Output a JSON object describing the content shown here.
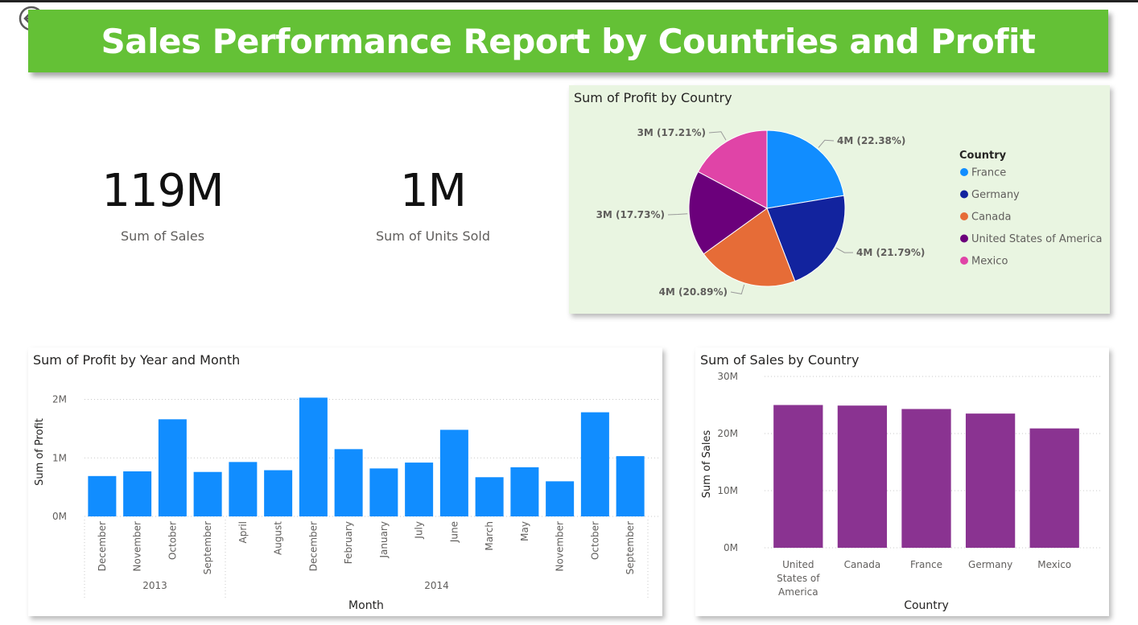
{
  "header": {
    "title": "Sales Performance Report by Countries and Profit",
    "banner_color": "#64c136",
    "back_icon": "back-arrow-icon"
  },
  "kpis": [
    {
      "value": "119M",
      "label": "Sum of Sales"
    },
    {
      "value": "1M",
      "label": "Sum of Units Sold"
    }
  ],
  "chart_data": [
    {
      "type": "pie",
      "title": "Sum of Profit by Country",
      "legend_title": "Country",
      "legend_position": "right",
      "slices": [
        {
          "name": "France",
          "label": "4M (22.38%)",
          "value": 22.38,
          "color": "#118dff"
        },
        {
          "name": "Germany",
          "label": "4M (21.79%)",
          "value": 21.79,
          "color": "#12239e"
        },
        {
          "name": "Canada",
          "label": "4M (20.89%)",
          "value": 20.89,
          "color": "#e66c37"
        },
        {
          "name": "United States of America",
          "label": "3M (17.73%)",
          "value": 17.73,
          "color": "#6b007b"
        },
        {
          "name": "Mexico",
          "label": "3M (17.21%)",
          "value": 17.21,
          "color": "#e044a7"
        }
      ]
    },
    {
      "type": "bar",
      "title": "Sum of Profit by Year and Month",
      "xlabel": "Month",
      "ylabel": "Sum of Profit",
      "ylim": [
        0,
        2200000
      ],
      "yticks": [
        {
          "value": 0,
          "label": "0M"
        },
        {
          "value": 1000000,
          "label": "1M"
        },
        {
          "value": 2000000,
          "label": "2M"
        }
      ],
      "grid": true,
      "color": "#118dff",
      "groups": [
        {
          "name": "2013",
          "categories": [
            "December",
            "November",
            "October",
            "September"
          ]
        },
        {
          "name": "2014",
          "categories": [
            "April",
            "August",
            "December",
            "February",
            "January",
            "July",
            "June",
            "March",
            "May",
            "November",
            "October",
            "September"
          ]
        }
      ],
      "values": [
        690000,
        770000,
        1660000,
        760000,
        930000,
        790000,
        2030000,
        1150000,
        820000,
        920000,
        1480000,
        670000,
        840000,
        600000,
        1780000,
        1030000
      ]
    },
    {
      "type": "bar",
      "title": "Sum of Sales by Country",
      "xlabel": "Country",
      "ylabel": "Sum of Sales",
      "ylim": [
        0,
        30000000
      ],
      "yticks": [
        {
          "value": 0,
          "label": "0M"
        },
        {
          "value": 10000000,
          "label": "10M"
        },
        {
          "value": 20000000,
          "label": "20M"
        },
        {
          "value": 30000000,
          "label": "30M"
        }
      ],
      "grid": true,
      "color": "#8a3391",
      "categories": [
        "United States of America",
        "Canada",
        "France",
        "Germany",
        "Mexico"
      ],
      "category_lines": [
        [
          "United",
          "States of",
          "America"
        ],
        [
          "Canada"
        ],
        [
          "France"
        ],
        [
          "Germany"
        ],
        [
          "Mexico"
        ]
      ],
      "values": [
        25000000,
        24900000,
        24300000,
        23500000,
        20900000
      ]
    }
  ]
}
